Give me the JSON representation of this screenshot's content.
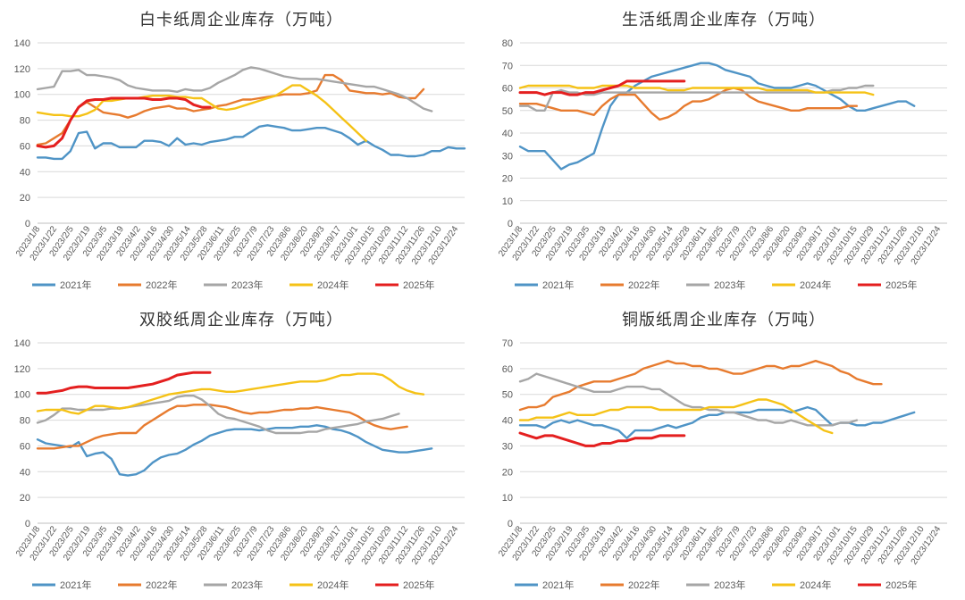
{
  "colors": {
    "2021年": "#4f94c6",
    "2022年": "#e77b2f",
    "2023年": "#a6a6a6",
    "2024年": "#f5c216",
    "2025年": "#e41f1f"
  },
  "chart_data": [
    {
      "type": "line",
      "title": "白卡纸周企业库存（万吨）",
      "ylim": [
        0,
        140
      ],
      "yticks": [
        0,
        20,
        40,
        60,
        80,
        100,
        120,
        140
      ],
      "x_tick_labels": [
        "2023/1/8",
        "2023/1/22",
        "2023/2/5",
        "2023/2/19",
        "2023/3/5",
        "2023/3/19",
        "2023/4/2",
        "2023/4/16",
        "2023/4/30",
        "2023/5/14",
        "2023/5/28",
        "2023/6/11",
        "2023/6/25",
        "2023/7/9",
        "2023/7/23",
        "2023/8/6",
        "2023/8/20",
        "2023/9/3",
        "2023/9/17",
        "2023/10/1",
        "2023/10/15",
        "2023/10/29",
        "2023/11/12",
        "2023/11/26",
        "2023/12/10",
        "2023/12/24"
      ],
      "legend_position": "bottom",
      "series": [
        {
          "name": "2021年",
          "values": [
            51,
            51,
            50,
            50,
            56,
            70,
            71,
            58,
            62,
            62,
            59,
            59,
            59,
            64,
            64,
            63,
            60,
            66,
            61,
            62,
            61,
            63,
            64,
            65,
            67,
            67,
            71,
            75,
            76,
            75,
            74,
            72,
            72,
            73,
            74,
            74,
            72,
            70,
            66,
            61,
            64,
            60,
            57,
            53,
            53,
            52,
            52,
            53,
            56,
            56,
            59,
            58,
            58
          ]
        },
        {
          "name": "2022年",
          "values": [
            61,
            62,
            66,
            70,
            80,
            90,
            94,
            90,
            86,
            85,
            84,
            82,
            84,
            87,
            89,
            90,
            91,
            89,
            89,
            87,
            88,
            89,
            91,
            92,
            94,
            96,
            96,
            97,
            98,
            99,
            100,
            100,
            100,
            101,
            103,
            115,
            115,
            111,
            103,
            102,
            101,
            101,
            100,
            101,
            98,
            97,
            97,
            104
          ]
        },
        {
          "name": "2023年",
          "values": [
            104,
            105,
            106,
            118,
            118,
            119,
            115,
            115,
            114,
            113,
            111,
            107,
            105,
            104,
            103,
            103,
            103,
            102,
            104,
            103,
            103,
            105,
            109,
            112,
            115,
            119,
            121,
            120,
            118,
            116,
            114,
            113,
            112,
            112,
            112,
            111,
            110,
            109,
            108,
            107,
            106,
            106,
            104,
            102,
            100,
            97,
            93,
            89,
            87
          ]
        },
        {
          "name": "2024年",
          "values": [
            86,
            85,
            84,
            84,
            83,
            83,
            85,
            88,
            95,
            95,
            96,
            97,
            97,
            98,
            99,
            99,
            99,
            98,
            98,
            97,
            97,
            93,
            89,
            88,
            89,
            91,
            93,
            95,
            97,
            99,
            103,
            107,
            107,
            103,
            99,
            94,
            88,
            82,
            76,
            70,
            64
          ]
        },
        {
          "name": "2025年",
          "values": [
            60,
            59,
            60,
            66,
            80,
            90,
            95,
            96,
            96,
            97,
            97,
            97,
            97,
            97,
            96,
            96,
            97,
            97,
            96,
            92,
            90,
            90
          ]
        }
      ]
    },
    {
      "type": "line",
      "title": "生活纸周企业库存（万吨）",
      "ylim": [
        0,
        80
      ],
      "yticks": [
        0,
        10,
        20,
        30,
        40,
        50,
        60,
        70,
        80
      ],
      "x_tick_labels": [
        "2023/1/8",
        "2023/1/22",
        "2023/2/5",
        "2023/2/19",
        "2023/3/5",
        "2023/3/19",
        "2023/4/2",
        "2023/4/16",
        "2023/4/30",
        "2023/5/14",
        "2023/5/28",
        "2023/6/11",
        "2023/6/25",
        "2023/7/9",
        "2023/7/23",
        "2023/8/6",
        "2023/8/20",
        "2023/9/3",
        "2023/9/17",
        "2023/10/1",
        "2023/10/15",
        "2023/10/29",
        "2023/11/12",
        "2023/11/26",
        "2023/12/10",
        "2023/12/24"
      ],
      "legend_position": "bottom",
      "series": [
        {
          "name": "2021年",
          "values": [
            34,
            32,
            32,
            32,
            28,
            24,
            26,
            27,
            29,
            31,
            42,
            52,
            57,
            58,
            61,
            63,
            65,
            66,
            67,
            68,
            69,
            70,
            71,
            71,
            70,
            68,
            67,
            66,
            65,
            62,
            61,
            60,
            60,
            60,
            61,
            62,
            61,
            59,
            57,
            55,
            52,
            50,
            50,
            51,
            52,
            53,
            54,
            54,
            52
          ]
        },
        {
          "name": "2022年",
          "values": [
            53,
            53,
            53,
            52,
            51,
            50,
            50,
            50,
            49,
            48,
            52,
            55,
            57,
            57,
            57,
            53,
            49,
            46,
            47,
            49,
            52,
            54,
            54,
            55,
            57,
            59,
            60,
            59,
            56,
            54,
            53,
            52,
            51,
            50,
            50,
            51,
            51,
            51,
            51,
            51,
            52,
            52
          ]
        },
        {
          "name": "2023年",
          "values": [
            52,
            52,
            50,
            50,
            58,
            59,
            58,
            58,
            57,
            57,
            58,
            58,
            58,
            58,
            58,
            58,
            58,
            58,
            58,
            58,
            58,
            58,
            58,
            58,
            58,
            58,
            58,
            58,
            58,
            58,
            58,
            58,
            58,
            58,
            58,
            58,
            58,
            58,
            59,
            59,
            60,
            60,
            61,
            61
          ]
        },
        {
          "name": "2024年",
          "values": [
            60,
            61,
            61,
            61,
            61,
            61,
            61,
            60,
            60,
            60,
            61,
            61,
            61,
            61,
            60,
            60,
            60,
            60,
            59,
            59,
            59,
            60,
            60,
            60,
            60,
            60,
            60,
            60,
            60,
            60,
            59,
            59,
            59,
            59,
            59,
            59,
            58,
            58,
            58,
            58,
            58,
            58,
            58,
            57
          ]
        },
        {
          "name": "2025年",
          "values": [
            58,
            58,
            58,
            57,
            58,
            58,
            57,
            57,
            58,
            58,
            59,
            60,
            61,
            63,
            63,
            63,
            63,
            63,
            63,
            63,
            63
          ]
        }
      ]
    },
    {
      "type": "line",
      "title": "双胶纸周企业库存（万吨）",
      "ylim": [
        0,
        140
      ],
      "yticks": [
        0,
        20,
        40,
        60,
        80,
        100,
        120,
        140
      ],
      "x_tick_labels": [
        "2023/1/8",
        "2023/1/22",
        "2023/2/5",
        "2023/2/19",
        "2023/3/5",
        "2023/3/19",
        "2023/4/2",
        "2023/4/16",
        "2023/4/30",
        "2023/5/14",
        "2023/5/28",
        "2023/6/11",
        "2023/6/25",
        "2023/7/9",
        "2023/7/23",
        "2023/8/6",
        "2023/8/20",
        "2023/9/3",
        "2023/9/17",
        "2023/10/1",
        "2023/10/15",
        "2023/10/29",
        "2023/11/12",
        "2023/11/26",
        "2023/12/10",
        "2023/12/24"
      ],
      "legend_position": "bottom",
      "series": [
        {
          "name": "2021年",
          "values": [
            65,
            62,
            61,
            60,
            59,
            63,
            52,
            54,
            55,
            50,
            38,
            37,
            38,
            41,
            47,
            51,
            53,
            54,
            57,
            61,
            64,
            68,
            70,
            72,
            73,
            73,
            73,
            72,
            73,
            74,
            74,
            74,
            75,
            75,
            76,
            75,
            73,
            72,
            70,
            67,
            63,
            60,
            57,
            56,
            55,
            55,
            56,
            57,
            58
          ]
        },
        {
          "name": "2022年",
          "values": [
            58,
            58,
            58,
            59,
            60,
            60,
            63,
            66,
            68,
            69,
            70,
            70,
            70,
            76,
            80,
            84,
            88,
            91,
            91,
            92,
            92,
            92,
            91,
            90,
            88,
            86,
            85,
            86,
            86,
            87,
            88,
            88,
            89,
            89,
            90,
            89,
            88,
            87,
            86,
            83,
            79,
            76,
            74,
            73,
            74,
            75
          ]
        },
        {
          "name": "2023年",
          "values": [
            78,
            80,
            84,
            89,
            89,
            88,
            88,
            88,
            88,
            89,
            89,
            90,
            91,
            92,
            93,
            94,
            95,
            98,
            99,
            99,
            96,
            91,
            85,
            82,
            81,
            79,
            77,
            75,
            72,
            70,
            70,
            70,
            70,
            71,
            71,
            73,
            74,
            75,
            76,
            77,
            79,
            80,
            81,
            83,
            85
          ]
        },
        {
          "name": "2024年",
          "values": [
            87,
            88,
            88,
            88,
            86,
            85,
            88,
            91,
            91,
            90,
            89,
            90,
            92,
            94,
            96,
            98,
            100,
            101,
            102,
            103,
            104,
            104,
            103,
            102,
            102,
            103,
            104,
            105,
            106,
            107,
            108,
            109,
            110,
            110,
            110,
            111,
            113,
            115,
            115,
            116,
            116,
            116,
            115,
            111,
            106,
            103,
            101,
            100
          ]
        },
        {
          "name": "2025年",
          "values": [
            101,
            101,
            102,
            103,
            105,
            106,
            106,
            105,
            105,
            105,
            105,
            105,
            106,
            107,
            108,
            110,
            112,
            115,
            116,
            117,
            117,
            117
          ]
        }
      ]
    },
    {
      "type": "line",
      "title": "铜版纸周企业库存（万吨）",
      "ylim": [
        0,
        70
      ],
      "yticks": [
        0,
        10,
        20,
        30,
        40,
        50,
        60,
        70
      ],
      "x_tick_labels": [
        "2023/1/8",
        "2023/1/22",
        "2023/2/5",
        "2023/2/19",
        "2023/3/5",
        "2023/3/19",
        "2023/4/2",
        "2023/4/16",
        "2023/4/30",
        "2023/5/14",
        "2023/5/28",
        "2023/6/11",
        "2023/6/25",
        "2023/7/9",
        "2023/7/23",
        "2023/8/6",
        "2023/8/20",
        "2023/9/3",
        "2023/9/17",
        "2023/10/1",
        "2023/10/15",
        "2023/10/29",
        "2023/11/12",
        "2023/11/26",
        "2023/12/10",
        "2023/12/24"
      ],
      "legend_position": "bottom",
      "series": [
        {
          "name": "2021年",
          "values": [
            38,
            38,
            38,
            37,
            39,
            40,
            39,
            40,
            39,
            38,
            38,
            37,
            36,
            33,
            36,
            36,
            36,
            37,
            38,
            37,
            38,
            39,
            41,
            42,
            42,
            43,
            43,
            43,
            43,
            44,
            44,
            44,
            44,
            43,
            44,
            45,
            44,
            41,
            38,
            39,
            39,
            38,
            38,
            39,
            39,
            40,
            41,
            42,
            43
          ]
        },
        {
          "name": "2022年",
          "values": [
            44,
            45,
            45,
            46,
            49,
            50,
            51,
            53,
            54,
            55,
            55,
            55,
            56,
            57,
            58,
            60,
            61,
            62,
            63,
            62,
            62,
            61,
            61,
            60,
            60,
            59,
            58,
            58,
            59,
            60,
            61,
            61,
            60,
            61,
            61,
            62,
            63,
            62,
            61,
            59,
            58,
            56,
            55,
            54,
            54
          ]
        },
        {
          "name": "2023年",
          "values": [
            55,
            56,
            58,
            57,
            56,
            55,
            54,
            53,
            52,
            51,
            51,
            51,
            52,
            53,
            53,
            53,
            52,
            52,
            50,
            48,
            46,
            45,
            45,
            44,
            44,
            43,
            43,
            42,
            41,
            40,
            40,
            39,
            39,
            40,
            39,
            38,
            38,
            38,
            38,
            39,
            39,
            40
          ]
        },
        {
          "name": "2024年",
          "values": [
            40,
            40,
            41,
            41,
            41,
            42,
            43,
            42,
            42,
            42,
            43,
            44,
            44,
            45,
            45,
            45,
            45,
            44,
            44,
            44,
            44,
            44,
            44,
            45,
            45,
            45,
            45,
            46,
            47,
            48,
            48,
            47,
            46,
            44,
            42,
            40,
            38,
            36,
            35
          ]
        },
        {
          "name": "2025年",
          "values": [
            35,
            34,
            33,
            34,
            34,
            33,
            32,
            31,
            30,
            30,
            31,
            31,
            32,
            32,
            33,
            33,
            33,
            34,
            34,
            34,
            34
          ]
        }
      ]
    }
  ]
}
